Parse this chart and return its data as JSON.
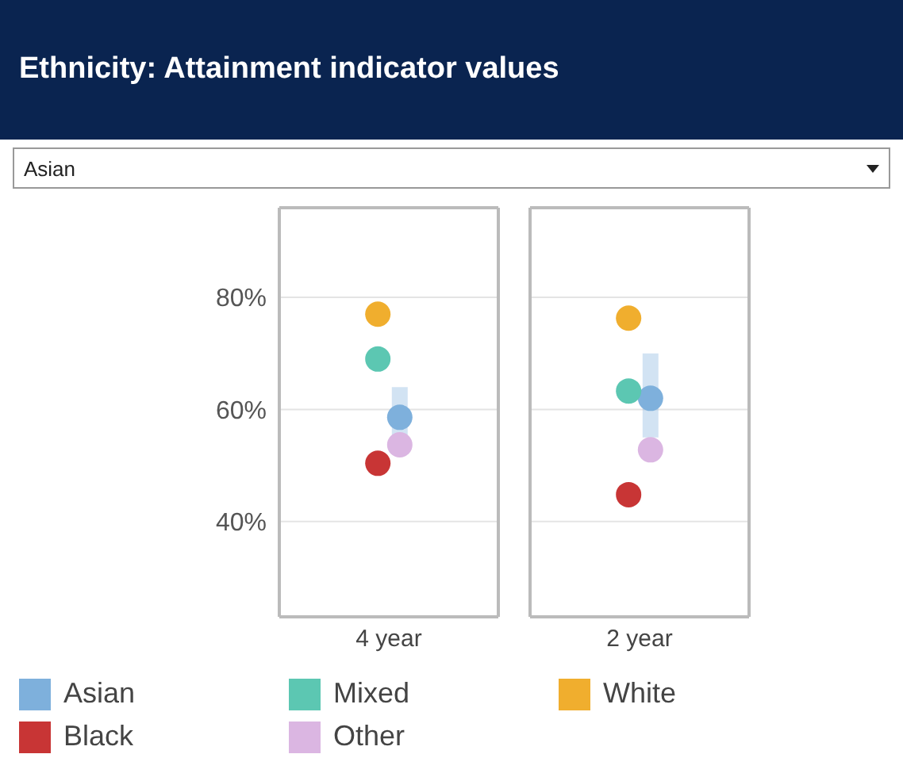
{
  "chart_data": {
    "type": "scatter",
    "title": "Ethnicity: Attainment indicator values",
    "subtitle": "Asian",
    "categories": [
      "4 year",
      "2 year"
    ],
    "series": [
      {
        "name": "Asian",
        "color": "#7eb0dc",
        "values": [
          58.6,
          62
        ],
        "errors": [
          [
            52,
            64
          ],
          [
            55,
            70
          ]
        ]
      },
      {
        "name": "Black",
        "color": "#c83535",
        "values": [
          50.4,
          44.8
        ]
      },
      {
        "name": "Mixed",
        "color": "#5cc7b2",
        "values": [
          69,
          63.3
        ]
      },
      {
        "name": "Other",
        "color": "#dbb6e2",
        "values": [
          53.7,
          52.8
        ]
      },
      {
        "name": "White",
        "color": "#f0ae2e",
        "values": [
          77,
          76.3
        ]
      }
    ],
    "ylim": [
      23,
      96
    ],
    "yticks": [
      {
        "value": 40,
        "label": "40%"
      },
      {
        "value": 60,
        "label": "60%"
      },
      {
        "value": 80,
        "label": "80%"
      }
    ],
    "grid": "y",
    "legend": "bottom",
    "marker": "circle"
  }
}
